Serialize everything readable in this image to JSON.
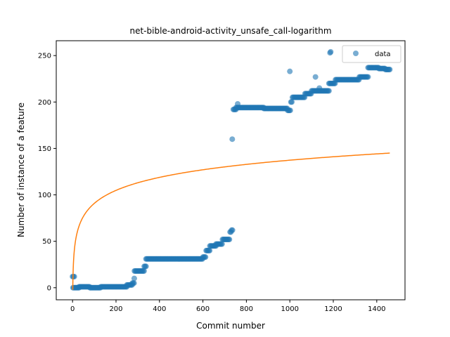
{
  "chart_data": {
    "type": "scatter",
    "title": "net-bible-android-activity_unsafe_call-logarithm",
    "xlabel": "Commit number",
    "ylabel": "Number of instance of a feature",
    "xlim": [
      -75,
      1530
    ],
    "ylim": [
      -13,
      266
    ],
    "xticks": [
      0,
      200,
      400,
      600,
      800,
      1000,
      1200,
      1400
    ],
    "yticks": [
      0,
      50,
      100,
      150,
      200,
      250
    ],
    "grid": false,
    "legend_position": "top-right",
    "colors": {
      "data": "#1f77b4",
      "fit": "#ff7f0e"
    },
    "series": [
      {
        "name": "data",
        "kind": "scatter",
        "segments": [
          {
            "x_from": 0,
            "x_to": 8,
            "y": 12
          },
          {
            "x_from": 2,
            "x_to": 30,
            "y": 0
          },
          {
            "x_from": 30,
            "x_to": 80,
            "y": 1
          },
          {
            "x_from": 80,
            "x_to": 130,
            "y": 0
          },
          {
            "x_from": 130,
            "x_to": 250,
            "y": 1
          },
          {
            "x_from": 250,
            "x_to": 275,
            "y": 3
          },
          {
            "x_from": 275,
            "x_to": 285,
            "y": 5
          },
          {
            "x_from": 285,
            "x_to": 330,
            "y": 18
          },
          {
            "x_from": 330,
            "x_to": 338,
            "y": 23
          },
          {
            "x_from": 338,
            "x_to": 600,
            "y": 31
          },
          {
            "x_from": 600,
            "x_to": 615,
            "y": 33
          },
          {
            "x_from": 615,
            "x_to": 632,
            "y": 40
          },
          {
            "x_from": 632,
            "x_to": 660,
            "y": 45
          },
          {
            "x_from": 660,
            "x_to": 690,
            "y": 47
          },
          {
            "x_from": 690,
            "x_to": 725,
            "y": 52
          },
          {
            "x_from": 725,
            "x_to": 732,
            "y": 60
          },
          {
            "x_from": 732,
            "x_to": 738,
            "y": 62
          },
          {
            "x_from": 740,
            "x_to": 752,
            "y": 192
          },
          {
            "x_from": 752,
            "x_to": 880,
            "y": 194
          },
          {
            "x_from": 880,
            "x_to": 990,
            "y": 193
          },
          {
            "x_from": 990,
            "x_to": 1005,
            "y": 191
          },
          {
            "x_from": 1005,
            "x_to": 1012,
            "y": 200
          },
          {
            "x_from": 1012,
            "x_to": 1070,
            "y": 205
          },
          {
            "x_from": 1070,
            "x_to": 1100,
            "y": 209
          },
          {
            "x_from": 1100,
            "x_to": 1180,
            "y": 212
          },
          {
            "x_from": 1180,
            "x_to": 1210,
            "y": 220
          },
          {
            "x_from": 1210,
            "x_to": 1320,
            "y": 224
          },
          {
            "x_from": 1320,
            "x_to": 1360,
            "y": 227
          },
          {
            "x_from": 1360,
            "x_to": 1410,
            "y": 237
          },
          {
            "x_from": 1410,
            "x_to": 1440,
            "y": 236
          },
          {
            "x_from": 1440,
            "x_to": 1462,
            "y": 235
          }
        ],
        "points": [
          {
            "x": 284,
            "y": 10
          },
          {
            "x": 735,
            "y": 160
          },
          {
            "x": 760,
            "y": 198
          },
          {
            "x": 1000,
            "y": 233
          },
          {
            "x": 1118,
            "y": 227
          },
          {
            "x": 1136,
            "y": 215
          },
          {
            "x": 1185,
            "y": 253
          },
          {
            "x": 1188,
            "y": 254
          }
        ]
      },
      {
        "name": "",
        "kind": "line",
        "fit": "logarithm",
        "a": 20.2,
        "b": -2.2,
        "x_range": [
          1,
          1460
        ]
      }
    ]
  }
}
